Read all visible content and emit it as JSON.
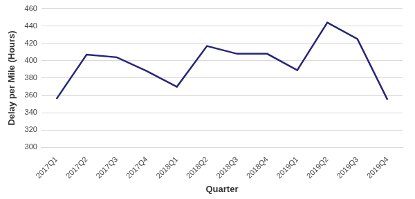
{
  "chart_data": {
    "type": "line",
    "x_label": "Quarter",
    "y_label": "Delay per Mile (Hours)",
    "categories": [
      "2017Q1",
      "2017Q2",
      "2017Q3",
      "2017Q4",
      "2018Q1",
      "2018Q2",
      "2018Q3",
      "2018Q4",
      "2019Q1",
      "2019Q2",
      "2019Q3",
      "2019Q4"
    ],
    "values": [
      356,
      407,
      404,
      388,
      370,
      417,
      408,
      408,
      389,
      444,
      425,
      355
    ],
    "color": "#25257a",
    "marker": "none",
    "ylim": [
      300,
      460
    ],
    "yticks": [
      300,
      320,
      340,
      360,
      380,
      400,
      420,
      440,
      460
    ],
    "grid": true
  }
}
